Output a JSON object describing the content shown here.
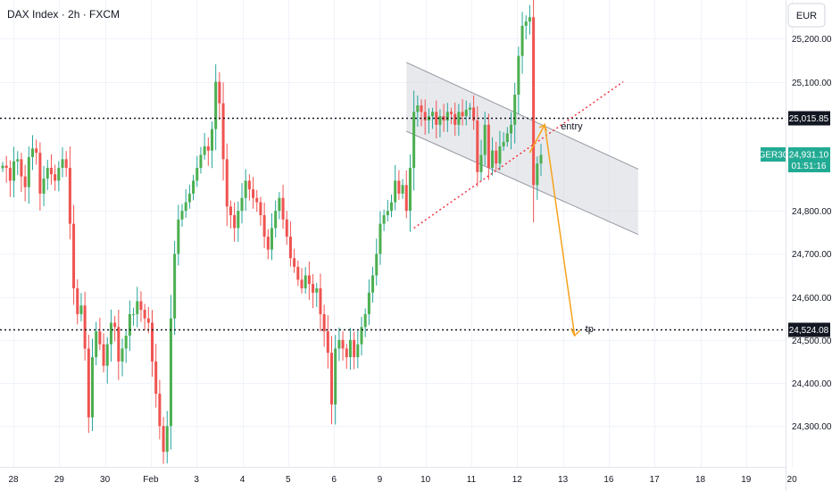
{
  "chart_data": {
    "type": "candlestick",
    "title": "DAX Index · 2h · FXCM",
    "currency": "EUR",
    "x_tick_labels": [
      "28",
      "29",
      "30",
      "Feb",
      "3",
      "4",
      "5",
      "6",
      "9",
      "10",
      "11",
      "12",
      "13",
      "16",
      "17",
      "18",
      "19",
      "20"
    ],
    "y_ticks": [
      24300,
      24400,
      24500,
      24600,
      24700,
      24800,
      25100,
      25200
    ],
    "y_tick_labels": [
      "24,300.00",
      "24,400.00",
      "24,500.00",
      "24,600.00",
      "24,700.00",
      "24,800.00",
      "25,100.00",
      "25,200.00"
    ],
    "ylim": [
      24205,
      25290
    ],
    "up_color": "#26a69a",
    "up_fill": "#4caf50",
    "down_color": "#ef5350",
    "grid": true,
    "closes": [
      24905,
      24900,
      24870,
      24915,
      24920,
      24880,
      24855,
      24925,
      24945,
      24935,
      24840,
      24875,
      24900,
      24885,
      24870,
      24900,
      24920,
      24900,
      24770,
      24620,
      24560,
      24580,
      24480,
      24320,
      24460,
      24520,
      24490,
      24440,
      24490,
      24540,
      24530,
      24450,
      24480,
      24510,
      24560,
      24560,
      24590,
      24570,
      24550,
      24540,
      24450,
      24375,
      24300,
      24240,
      24300,
      24550,
      24700,
      24780,
      24800,
      24820,
      24840,
      24870,
      24900,
      24930,
      24950,
      24940,
      24990,
      25100,
      25050,
      24920,
      24810,
      24790,
      24760,
      24800,
      24830,
      24870,
      24850,
      24830,
      24820,
      24790,
      24740,
      24710,
      24760,
      24800,
      24830,
      24780,
      24740,
      24690,
      24670,
      24640,
      24620,
      24650,
      24630,
      24610,
      24620,
      24560,
      24520,
      24470,
      24350,
      24480,
      24500,
      24480,
      24460,
      24500,
      24460,
      24490,
      24530,
      24560,
      24610,
      24650,
      24700,
      24770,
      24790,
      24800,
      24820,
      24870,
      24840,
      24860,
      24800,
      24900,
      25030,
      25045,
      25030,
      25010,
      25020,
      25030,
      25000,
      25020,
      25010,
      25030,
      25025,
      25000,
      25030,
      25020,
      25035,
      25040,
      25010,
      24890,
      24930,
      25000,
      24900,
      24940,
      24910,
      24950,
      24960,
      24980,
      25000,
      25070,
      25160,
      25230,
      25240,
      25250,
      24860,
      24910,
      24930
    ],
    "levels": [
      {
        "value": 25015.85,
        "label": "25,015.85",
        "style": "dotted",
        "color": "#131722"
      },
      {
        "value": 24524.08,
        "label": "24,524.08",
        "style": "dotted",
        "color": "#131722"
      }
    ],
    "current_price": {
      "symbol": "GER30",
      "value": "24,931.10",
      "countdown": "01:51:16",
      "color": "#22ab94"
    },
    "annotations": [
      {
        "text": "entry"
      },
      {
        "text": "tp"
      }
    ],
    "channel": {
      "fill": "#d1d4dc",
      "line_color": "#9598a1"
    },
    "trendline": {
      "color": "#f23645",
      "style": "dotted"
    },
    "arrow_color": "#f7a21b"
  }
}
